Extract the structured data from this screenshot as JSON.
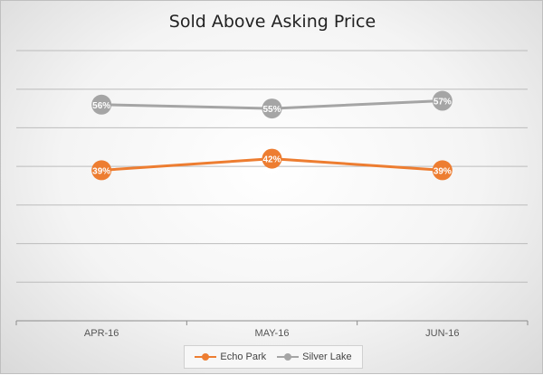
{
  "chart_data": {
    "type": "line",
    "title": "Sold Above Asking Price",
    "categories": [
      "APR-16",
      "MAY-16",
      "JUN-16"
    ],
    "ylim": [
      0,
      70
    ],
    "grid": true,
    "legend_position": "bottom",
    "series": [
      {
        "name": "Echo Park",
        "values": [
          39,
          42,
          39
        ],
        "labels": [
          "39%",
          "42%",
          "39%"
        ],
        "color": "#ed7d31"
      },
      {
        "name": "Silver Lake",
        "values": [
          56,
          55,
          57
        ],
        "labels": [
          "56%",
          "55%",
          "57%"
        ],
        "color": "#a5a5a5"
      }
    ]
  }
}
